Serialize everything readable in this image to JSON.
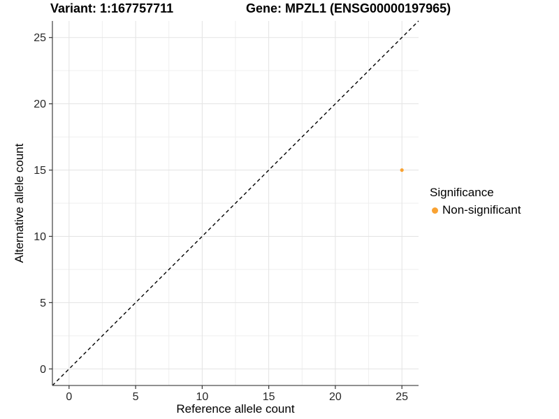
{
  "chart_data": {
    "type": "scatter",
    "title_left": "Variant: 1:167757711",
    "title_right": "Gene: MPZL1 (ENSG00000197965)",
    "xlabel": "Reference allele count",
    "ylabel": "Alternative allele count",
    "xlim": [
      -1.25,
      26.25
    ],
    "ylim": [
      -1.25,
      26.25
    ],
    "x_ticks": [
      0,
      5,
      10,
      15,
      20,
      25
    ],
    "y_ticks": [
      0,
      5,
      10,
      15,
      20,
      25
    ],
    "grid": true,
    "legend_position": "right",
    "identity_line": {
      "slope": 1,
      "intercept": 0,
      "style": "dashed",
      "color": "#000000"
    },
    "series": [
      {
        "name": "Non-significant",
        "color": "#F9A232",
        "points": [
          {
            "x": 25,
            "y": 15
          }
        ]
      }
    ],
    "legend": {
      "title": "Significance",
      "entries": [
        {
          "label": "Non-significant",
          "color": "#F9A232"
        }
      ]
    }
  },
  "style_colors": {
    "major_grid": "#e3e3e3",
    "minor_grid": "#efefef",
    "axis_line": "#4d4d4d",
    "tick_mark": "#333333",
    "tick_label": "#262626",
    "point": "#F9A232"
  }
}
